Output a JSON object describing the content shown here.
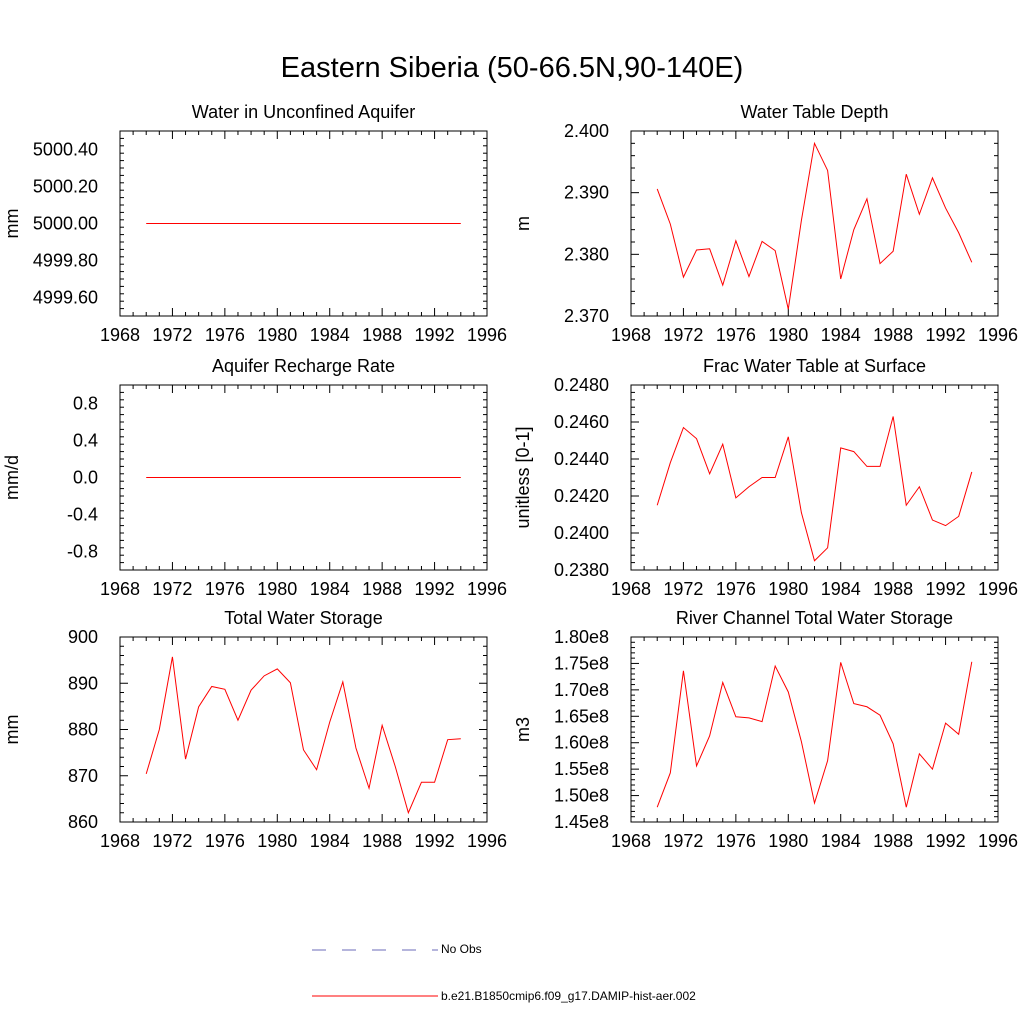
{
  "page_title": "Eastern Siberia (50-66.5N,90-140E)",
  "colors": {
    "model_line": "#ff0000",
    "obs_line": "#6b6bb8",
    "axis": "#000000"
  },
  "legend": {
    "obs_label": "No Obs",
    "model_label": "b.e21.B1850cmip6.f09_g17.DAMIP-hist-aer.002"
  },
  "chart_data": [
    {
      "type": "line",
      "title": "Water in Unconfined Aquifer",
      "ylabel": "mm",
      "xlim": [
        1968,
        1996
      ],
      "ylim": [
        4999.5,
        5000.5
      ],
      "xticks": [
        1968,
        1972,
        1976,
        1980,
        1984,
        1988,
        1992,
        1996
      ],
      "xtick_labels": [
        "1968",
        "1972",
        "1976",
        "1980",
        "1984",
        "1988",
        "1992",
        "1996"
      ],
      "yticks": [
        4999.6,
        4999.8,
        5000.0,
        5000.2,
        5000.4
      ],
      "ytick_labels": [
        "4999.60",
        "4999.80",
        "5000.00",
        "5000.20",
        "5000.40"
      ],
      "x": [
        1970,
        1971,
        1972,
        1973,
        1974,
        1975,
        1976,
        1977,
        1978,
        1979,
        1980,
        1981,
        1982,
        1983,
        1984,
        1985,
        1986,
        1987,
        1988,
        1989,
        1990,
        1991,
        1992,
        1993,
        1994
      ],
      "y": [
        5000.0,
        5000.0,
        5000.0,
        5000.0,
        5000.0,
        5000.0,
        5000.0,
        5000.0,
        5000.0,
        5000.0,
        5000.0,
        5000.0,
        5000.0,
        5000.0,
        5000.0,
        5000.0,
        5000.0,
        5000.0,
        5000.0,
        5000.0,
        5000.0,
        5000.0,
        5000.0,
        5000.0,
        5000.0
      ]
    },
    {
      "type": "line",
      "title": "Water Table Depth",
      "ylabel": "m",
      "xlim": [
        1968,
        1996
      ],
      "ylim": [
        2.37,
        2.4
      ],
      "xticks": [
        1968,
        1972,
        1976,
        1980,
        1984,
        1988,
        1992,
        1996
      ],
      "xtick_labels": [
        "1968",
        "1972",
        "1976",
        "1980",
        "1984",
        "1988",
        "1992",
        "1996"
      ],
      "yticks": [
        2.37,
        2.38,
        2.39,
        2.4
      ],
      "ytick_labels": [
        "2.370",
        "2.380",
        "2.390",
        "2.400"
      ],
      "x": [
        1970,
        1971,
        1972,
        1973,
        1974,
        1975,
        1976,
        1977,
        1978,
        1979,
        1980,
        1981,
        1982,
        1983,
        1984,
        1985,
        1986,
        1987,
        1988,
        1989,
        1990,
        1991,
        1992,
        1993,
        1994
      ],
      "y": [
        2.3906,
        2.3849,
        2.3763,
        2.3807,
        2.3809,
        2.375,
        2.3822,
        2.3764,
        2.3821,
        2.3806,
        2.3711,
        2.3855,
        2.398,
        2.3936,
        2.376,
        2.384,
        2.389,
        2.3785,
        2.3805,
        2.393,
        2.3865,
        2.3924,
        2.3875,
        2.3835,
        2.3787
      ]
    },
    {
      "type": "line",
      "title": "Aquifer Recharge Rate",
      "ylabel": "mm/d",
      "xlim": [
        1968,
        1996
      ],
      "ylim": [
        -1.0,
        1.0
      ],
      "xticks": [
        1968,
        1972,
        1976,
        1980,
        1984,
        1988,
        1992,
        1996
      ],
      "xtick_labels": [
        "1968",
        "1972",
        "1976",
        "1980",
        "1984",
        "1988",
        "1992",
        "1996"
      ],
      "yticks": [
        -0.8,
        -0.4,
        0.0,
        0.4,
        0.8
      ],
      "ytick_labels": [
        "-0.8",
        "-0.4",
        "0.0",
        "0.4",
        "0.8"
      ],
      "x": [
        1970,
        1971,
        1972,
        1973,
        1974,
        1975,
        1976,
        1977,
        1978,
        1979,
        1980,
        1981,
        1982,
        1983,
        1984,
        1985,
        1986,
        1987,
        1988,
        1989,
        1990,
        1991,
        1992,
        1993,
        1994
      ],
      "y": [
        0,
        0,
        0,
        0,
        0,
        0,
        0,
        0,
        0,
        0,
        0,
        0,
        0,
        0,
        0,
        0,
        0,
        0,
        0,
        0,
        0,
        0,
        0,
        0,
        0
      ]
    },
    {
      "type": "line",
      "title": "Frac Water Table at Surface",
      "ylabel": "unitless [0-1]",
      "xlim": [
        1968,
        1996
      ],
      "ylim": [
        0.238,
        0.248
      ],
      "xticks": [
        1968,
        1972,
        1976,
        1980,
        1984,
        1988,
        1992,
        1996
      ],
      "xtick_labels": [
        "1968",
        "1972",
        "1976",
        "1980",
        "1984",
        "1988",
        "1992",
        "1996"
      ],
      "yticks": [
        0.238,
        0.24,
        0.242,
        0.244,
        0.246,
        0.248
      ],
      "ytick_labels": [
        "0.2380",
        "0.2400",
        "0.2420",
        "0.2440",
        "0.2460",
        "0.2480"
      ],
      "x": [
        1970,
        1971,
        1972,
        1973,
        1974,
        1975,
        1976,
        1977,
        1978,
        1979,
        1980,
        1981,
        1982,
        1983,
        1984,
        1985,
        1986,
        1987,
        1988,
        1989,
        1990,
        1991,
        1992,
        1993,
        1994
      ],
      "y": [
        0.2415,
        0.2438,
        0.2457,
        0.2451,
        0.2432,
        0.2448,
        0.2419,
        0.2425,
        0.243,
        0.243,
        0.2452,
        0.2411,
        0.2385,
        0.2392,
        0.2446,
        0.2444,
        0.2436,
        0.2436,
        0.2463,
        0.2415,
        0.2425,
        0.2407,
        0.2404,
        0.2409,
        0.2433
      ]
    },
    {
      "type": "line",
      "title": "Total Water Storage",
      "ylabel": "mm",
      "xlim": [
        1968,
        1996
      ],
      "ylim": [
        860,
        900
      ],
      "xticks": [
        1968,
        1972,
        1976,
        1980,
        1984,
        1988,
        1992,
        1996
      ],
      "xtick_labels": [
        "1968",
        "1972",
        "1976",
        "1980",
        "1984",
        "1988",
        "1992",
        "1996"
      ],
      "yticks": [
        860,
        870,
        880,
        890,
        900
      ],
      "ytick_labels": [
        "860",
        "870",
        "880",
        "890",
        "900"
      ],
      "x": [
        1970,
        1971,
        1972,
        1973,
        1974,
        1975,
        1976,
        1977,
        1978,
        1979,
        1980,
        1981,
        1982,
        1983,
        1984,
        1985,
        1986,
        1987,
        1988,
        1989,
        1990,
        1991,
        1992,
        1993,
        1994
      ],
      "y": [
        870.4,
        880.0,
        895.7,
        873.6,
        884.9,
        889.3,
        888.7,
        882.0,
        888.5,
        891.6,
        893.1,
        890.1,
        875.6,
        871.3,
        881.6,
        890.3,
        876.0,
        867.3,
        880.9,
        872.0,
        862.0,
        868.6,
        868.6,
        877.8,
        878.0
      ]
    },
    {
      "type": "line",
      "title": "River Channel Total Water Storage",
      "ylabel": "m3",
      "xlim": [
        1968,
        1996
      ],
      "ylim": [
        145000000,
        180000000
      ],
      "xticks": [
        1968,
        1972,
        1976,
        1980,
        1984,
        1988,
        1992,
        1996
      ],
      "xtick_labels": [
        "1968",
        "1972",
        "1976",
        "1980",
        "1984",
        "1988",
        "1992",
        "1996"
      ],
      "yticks": [
        145000000,
        150000000,
        155000000,
        160000000,
        165000000,
        170000000,
        175000000,
        180000000
      ],
      "ytick_labels": [
        "1.45e8",
        "1.50e8",
        "1.55e8",
        "1.60e8",
        "1.65e8",
        "1.70e8",
        "1.75e8",
        "1.80e8"
      ],
      "x": [
        1970,
        1971,
        1972,
        1973,
        1974,
        1975,
        1976,
        1977,
        1978,
        1979,
        1980,
        1981,
        1982,
        1983,
        1984,
        1985,
        1986,
        1987,
        1988,
        1989,
        1990,
        1991,
        1992,
        1993,
        1994
      ],
      "y": [
        147800000,
        154300000,
        173600000,
        155600000,
        161300000,
        171400000,
        164900000,
        164700000,
        164000000,
        174500000,
        169600000,
        160200000,
        148600000,
        156600000,
        175200000,
        167400000,
        166800000,
        165200000,
        159800000,
        147800000,
        157900000,
        155000000,
        163700000,
        161600000,
        175300000
      ]
    }
  ]
}
